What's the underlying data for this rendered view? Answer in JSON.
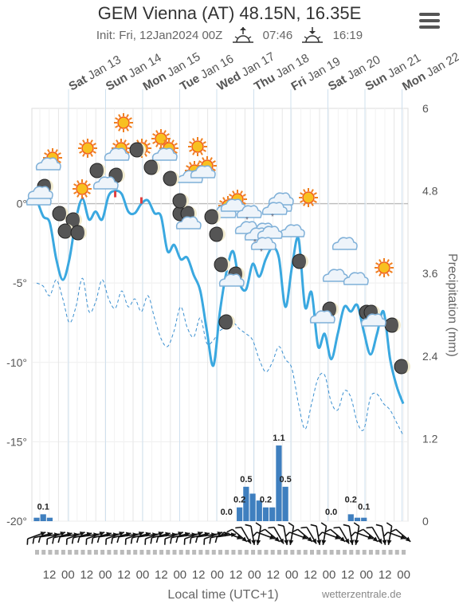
{
  "header": {
    "title": "GEM Vienna (AT) 48.15N, 16.35E",
    "init": "Init: Fri, 12Jan2024 00Z",
    "sunrise": "07:46",
    "sunset": "16:19"
  },
  "footer": {
    "xlabel": "Local time (UTC+1)",
    "credit": "wetterzentrale.de"
  },
  "chart_data": {
    "type": "line",
    "ylabel_right": "Precipitation (mm)",
    "ylim_temp": [
      -20,
      6
    ],
    "y_ticks_temp": [
      "0°",
      "-5°",
      "-10°",
      "-15°",
      "-20°"
    ],
    "ylim_precip": [
      0,
      6
    ],
    "y_ticks_precip": [
      "6",
      "4.8",
      "3.6",
      "2.4",
      "1.2",
      "0"
    ],
    "days": [
      {
        "wd": "Sat",
        "d": "Jan 13"
      },
      {
        "wd": "Sun",
        "d": "Jan 14"
      },
      {
        "wd": "Mon",
        "d": "Jan 15"
      },
      {
        "wd": "Tue",
        "d": "Jan 16"
      },
      {
        "wd": "Wed",
        "d": "Jan 17"
      },
      {
        "wd": "Thu",
        "d": "Jan 18"
      },
      {
        "wd": "Fri",
        "d": "Jan 19"
      },
      {
        "wd": "Sat",
        "d": "Jan 20"
      },
      {
        "wd": "Sun",
        "d": "Jan 21"
      },
      {
        "wd": "Mon",
        "d": "Jan 22"
      }
    ],
    "x_ticks": [
      "12",
      "00",
      "12",
      "00",
      "12",
      "00",
      "12",
      "00",
      "12",
      "00",
      "12",
      "00",
      "12",
      "00",
      "12",
      "00",
      "12",
      "00",
      "12",
      "00"
    ],
    "series": [
      {
        "values": [
          0.3,
          -0.8,
          -1.2,
          -3.5,
          -4.8,
          -3.5,
          -1.0,
          0.3,
          -1.0,
          -0.5,
          -1.0,
          0.5,
          0.8,
          0.6,
          -0.5,
          -0.6,
          0.0,
          0.2,
          -0.6,
          -0.8,
          -3.0,
          -2.6,
          -3.5,
          -3.4,
          -4.5,
          -5.5,
          -8.0,
          -10.2,
          -6.8,
          -4.3,
          -3.0,
          -5.0,
          -5.4,
          -3.8,
          -4.6,
          -3.5,
          -2.8,
          -3.4,
          -6.5,
          -4.0,
          -2.2,
          -6.5,
          -5.6,
          -9.0,
          -8.2,
          -9.8,
          -8.2,
          -6.5,
          -6.8,
          -6.4,
          -8.1,
          -9.5,
          -8.2,
          -6.8,
          -9.8,
          -11.5,
          -12.6
        ]
      },
      {
        "values": [
          -5.0,
          -5.2,
          -5.8,
          -4.8,
          -6.0,
          -7.5,
          -6.5,
          -4.7,
          -6.8,
          -6.2,
          -4.8,
          -6.0,
          -6.6,
          -5.5,
          -6.5,
          -6.0,
          -6.8,
          -5.8,
          -7.2,
          -8.5,
          -9.0,
          -8.0,
          -6.5,
          -7.8,
          -8.4,
          -7.2,
          -8.8,
          -8.6,
          -8.0,
          -7.8,
          -7.5,
          -7.9,
          -8.2,
          -8.6,
          -9.8,
          -10.6,
          -10.0,
          -9.0,
          -9.8,
          -10.4,
          -12.6,
          -14.2,
          -12.6,
          -11.0,
          -10.8,
          -12.5,
          -13.0,
          -11.8,
          -12.2,
          -13.8,
          -14.2,
          -12.2,
          -12.0,
          -12.6,
          -13.0,
          -13.8,
          -14.6
        ]
      },
      {
        "values": [
          0.05,
          0.1,
          0.05,
          0,
          0,
          0,
          0,
          0,
          0,
          0,
          0,
          0,
          0,
          0,
          0,
          0,
          0,
          0,
          0,
          0,
          0,
          0,
          0,
          0,
          0,
          0,
          0,
          0,
          0,
          0,
          0,
          0.2,
          0.5,
          0.4,
          0.3,
          0.2,
          0.2,
          1.1,
          0.5,
          0,
          0,
          0,
          0,
          0,
          0,
          0,
          0,
          0,
          0.1,
          0.05,
          0.05,
          0,
          0,
          0,
          0,
          0,
          0
        ]
      }
    ],
    "data_labels": [
      "0.1",
      "0.0",
      "0.2",
      "0.5",
      "0.2",
      "1.1",
      "0.5",
      "0.0",
      "0.2",
      "0.1"
    ]
  }
}
